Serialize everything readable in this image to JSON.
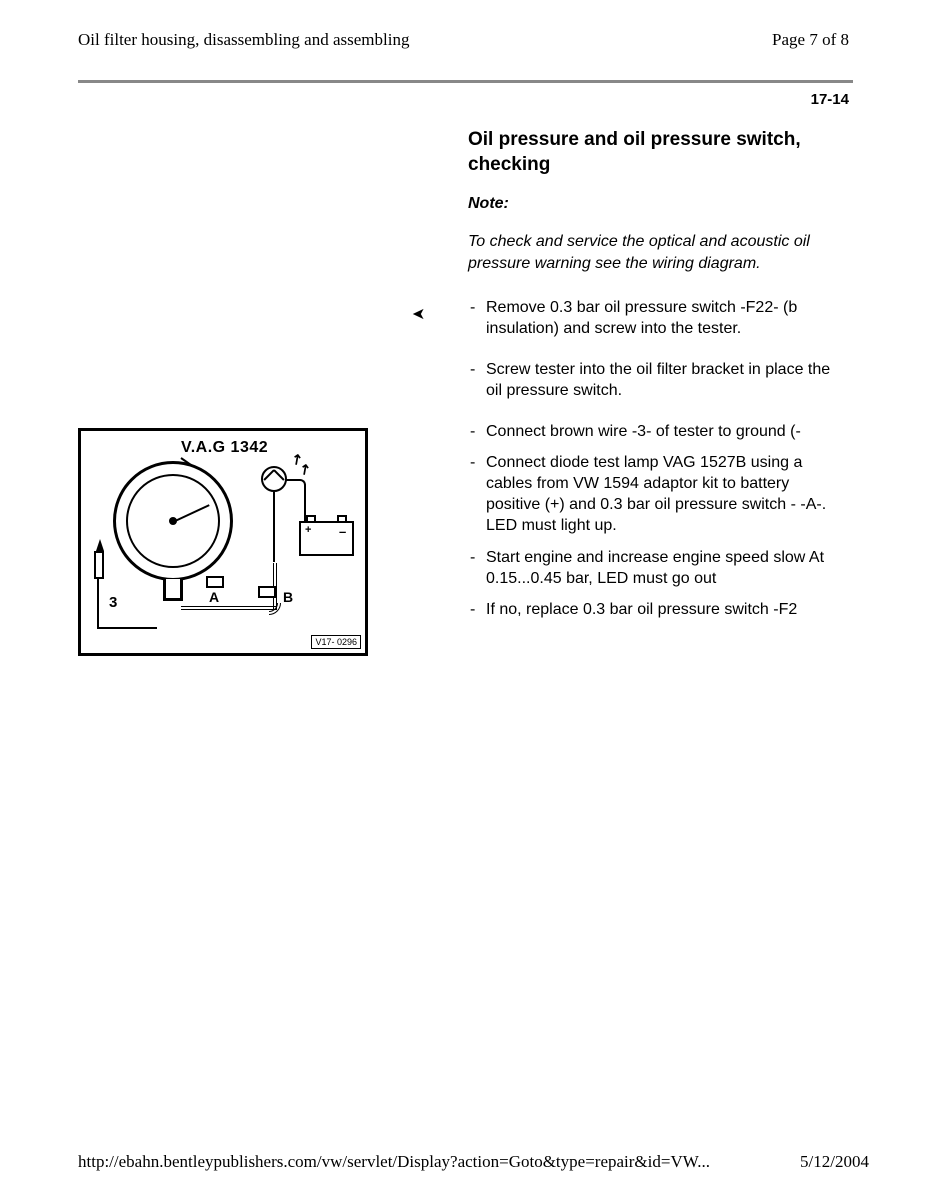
{
  "header": {
    "title": "Oil filter housing, disassembling and assembling",
    "page_label": "Page 7 of 8"
  },
  "section_number": "17-14",
  "content": {
    "title": "Oil pressure and oil pressure switch, checking",
    "note_heading": "Note:",
    "note_body": "To check and service the optical and acoustic oil pressure warning see the wiring diagram.",
    "steps_a": [
      "Remove 0.3 bar oil pressure switch -F22- (b insulation) and screw into the tester.",
      "Screw tester into the oil filter bracket in place the oil pressure switch."
    ],
    "steps_b": [
      "Connect brown wire -3- of tester to ground (-",
      "Connect diode test lamp VAG 1527B using a cables from VW 1594 adaptor kit to battery positive (+) and 0.3 bar oil pressure switch - -A-. LED must light up.",
      "Start engine and increase engine speed slow At 0.15...0.45 bar, LED must go out",
      "If no, replace 0.3 bar oil pressure switch -F2"
    ]
  },
  "figure": {
    "tool_label": "V.A.G 1342",
    "label_3": "3",
    "label_a": "A",
    "label_b": "B",
    "batt_plus": "+",
    "batt_minus": "–",
    "id_box": "V17- 0296"
  },
  "footer": {
    "url": "http://ebahn.bentleypublishers.com/vw/servlet/Display?action=Goto&type=repair&id=VW...",
    "date": "5/12/2004"
  }
}
